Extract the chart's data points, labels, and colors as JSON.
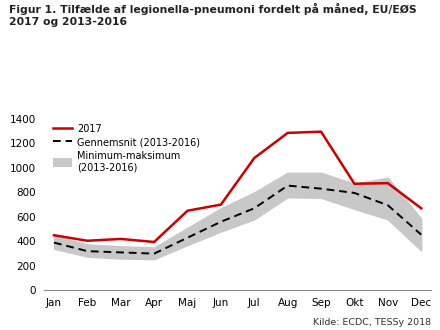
{
  "title_line1": "Figur 1. Tilfælde af legionella-pneumoni fordelt på måned, EU/EØS",
  "title_line2": "2017 og 2013-2016",
  "months": [
    "Jan",
    "Feb",
    "Mar",
    "Apr",
    "Maj",
    "Jun",
    "Jul",
    "Aug",
    "Sep",
    "Okt",
    "Nov",
    "Dec"
  ],
  "data_2017": [
    450,
    405,
    420,
    395,
    650,
    700,
    1080,
    1285,
    1295,
    870,
    875,
    670
  ],
  "mean_2013_2016": [
    390,
    320,
    310,
    300,
    430,
    560,
    670,
    855,
    830,
    795,
    695,
    455
  ],
  "min_2013_2016": [
    340,
    275,
    260,
    255,
    370,
    480,
    580,
    760,
    755,
    665,
    580,
    325
  ],
  "max_2013_2016": [
    445,
    375,
    360,
    350,
    510,
    670,
    800,
    960,
    960,
    870,
    920,
    585
  ],
  "ylim": [
    0,
    1400
  ],
  "yticks": [
    0,
    200,
    400,
    600,
    800,
    1000,
    1200,
    1400
  ],
  "color_2017": "#cc0000",
  "color_mean": "#000000",
  "color_fill": "#c8c8c8",
  "source_text": "Kilde: ECDC, TESSy 2018",
  "legend_2017": "2017",
  "legend_mean": "Gennemsnit (2013-2016)",
  "legend_fill": "Minimum-maksimum\n(2013-2016)"
}
